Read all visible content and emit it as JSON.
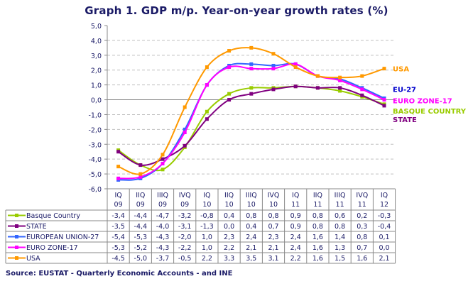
{
  "chart_data": {
    "type": "line",
    "title": "Graph 1. GDP m/p. Year-on-year growth rates (%)",
    "categories": [
      [
        "IQ",
        "09"
      ],
      [
        "IIQ",
        "09"
      ],
      [
        "IIIQ",
        "09"
      ],
      [
        "IVQ",
        "09"
      ],
      [
        "IQ",
        "10"
      ],
      [
        "IIQ",
        "10"
      ],
      [
        "IIIQ",
        "10"
      ],
      [
        "IVQ",
        "10"
      ],
      [
        "IQ",
        "11"
      ],
      [
        "IIQ",
        "11"
      ],
      [
        "IIIQ",
        "11"
      ],
      [
        "IVQ",
        "11"
      ],
      [
        "IQ",
        "12"
      ]
    ],
    "ylim": [
      -6,
      5
    ],
    "yticks": [
      "5,0",
      "4,0",
      "3,0",
      "2,0",
      "1,0",
      "0,0",
      "-1,0",
      "-2,0",
      "-3,0",
      "-4,0",
      "-5,0",
      "-6,0"
    ],
    "grid": true,
    "series": [
      {
        "name": "Basque Country",
        "label": "BASQUE COUNTRY",
        "color": "#99cc00",
        "values": [
          -3.4,
          -4.4,
          -4.7,
          -3.2,
          -0.8,
          0.4,
          0.8,
          0.8,
          0.9,
          0.8,
          0.6,
          0.2,
          -0.3
        ]
      },
      {
        "name": "STATE",
        "label": "STATE",
        "color": "#800080",
        "values": [
          -3.5,
          -4.4,
          -4.0,
          -3.1,
          -1.3,
          0.0,
          0.4,
          0.7,
          0.9,
          0.8,
          0.8,
          0.3,
          -0.4
        ]
      },
      {
        "name": "EUROPEAN UNION-27",
        "label": "EU-27",
        "color": "#3366ff",
        "labelColor": "#0000cc",
        "values": [
          -5.4,
          -5.3,
          -4.3,
          -2.0,
          1.0,
          2.3,
          2.4,
          2.3,
          2.4,
          1.6,
          1.4,
          0.8,
          0.1
        ]
      },
      {
        "name": "EURO ZONE-17",
        "label": "EURO ZONE-17",
        "color": "#ff00ff",
        "values": [
          -5.3,
          -5.2,
          -4.3,
          -2.2,
          1.0,
          2.2,
          2.1,
          2.1,
          2.4,
          1.6,
          1.3,
          0.7,
          0.0
        ]
      },
      {
        "name": "USA",
        "label": "USA",
        "color": "#ff9900",
        "values": [
          -4.5,
          -5.0,
          -3.7,
          -0.5,
          2.2,
          3.3,
          3.5,
          3.1,
          2.2,
          1.6,
          1.5,
          1.6,
          2.1
        ]
      }
    ]
  },
  "source": "Source: EUSTAT - Quarterly Economic Accounts - and INE"
}
